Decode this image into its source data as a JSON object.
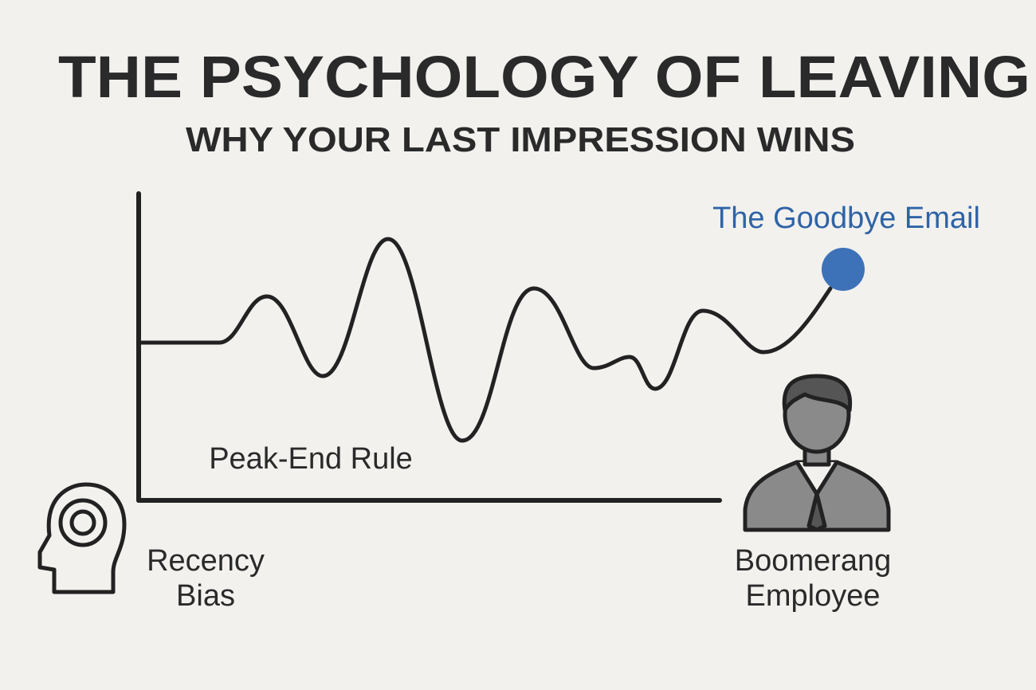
{
  "title": "THE PSYCHOLOGY OF LEAVING",
  "subtitle": "WHY YOUR LAST IMPRESSION WINS",
  "labels": {
    "goodbye_email": "The Goodbye Email",
    "peak_end_rule": "Peak-End Rule",
    "recency_bias": [
      "Recency",
      "Bias"
    ],
    "boomerang_employee": [
      "Boomerang",
      "Employee"
    ]
  }
}
